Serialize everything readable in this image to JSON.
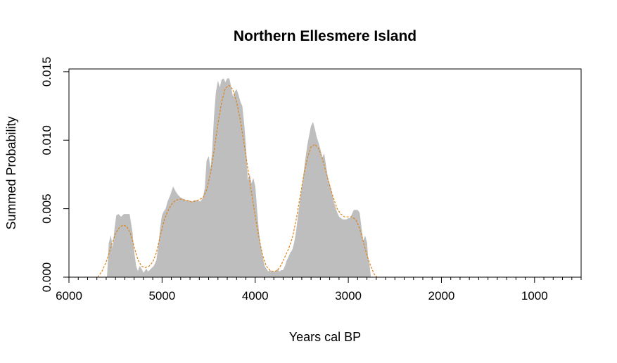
{
  "chart_data": {
    "type": "area",
    "title": "Northern Ellesmere Island",
    "xlabel": "Years cal BP",
    "ylabel": "Summed Probability",
    "xlim": [
      6000,
      500
    ],
    "ylim": [
      0,
      0.0152
    ],
    "x_reversed": true,
    "x_ticks": [
      6000,
      5000,
      4000,
      3000,
      2000,
      1000
    ],
    "x_tick_labels": [
      "6000",
      "5000",
      "4000",
      "3000",
      "2000",
      "1000"
    ],
    "x_minor_step": 100,
    "y_ticks": [
      0,
      0.005,
      0.01,
      0.015
    ],
    "y_tick_labels": [
      "0.000",
      "0.005",
      "0.010",
      "0.015"
    ],
    "grid": false,
    "series": [
      {
        "kind": "area",
        "color": "#bebebe",
        "points": [
          [
            5590,
            0
          ],
          [
            5570,
            0.0025
          ],
          [
            5550,
            0.003
          ],
          [
            5530,
            0.002
          ],
          [
            5510,
            0.0035
          ],
          [
            5490,
            0.0045
          ],
          [
            5470,
            0.0046
          ],
          [
            5440,
            0.0044
          ],
          [
            5410,
            0.0046
          ],
          [
            5380,
            0.0046
          ],
          [
            5350,
            0.0046
          ],
          [
            5320,
            0.0033
          ],
          [
            5300,
            0.0018
          ],
          [
            5280,
            0.0008
          ],
          [
            5260,
            0.0004
          ],
          [
            5240,
            0.0008
          ],
          [
            5220,
            0.0006
          ],
          [
            5200,
            0.0003
          ],
          [
            5170,
            0.0006
          ],
          [
            5150,
            0.0004
          ],
          [
            5120,
            0.0006
          ],
          [
            5090,
            0.0008
          ],
          [
            5060,
            0.0012
          ],
          [
            5040,
            0.0022
          ],
          [
            5020,
            0.0035
          ],
          [
            5000,
            0.0045
          ],
          [
            4980,
            0.0048
          ],
          [
            4960,
            0.005
          ],
          [
            4940,
            0.0055
          ],
          [
            4910,
            0.006
          ],
          [
            4880,
            0.0066
          ],
          [
            4860,
            0.0063
          ],
          [
            4830,
            0.006
          ],
          [
            4800,
            0.0058
          ],
          [
            4770,
            0.0057
          ],
          [
            4740,
            0.0056
          ],
          [
            4710,
            0.0056
          ],
          [
            4680,
            0.0055
          ],
          [
            4650,
            0.0056
          ],
          [
            4620,
            0.0056
          ],
          [
            4590,
            0.0055
          ],
          [
            4560,
            0.0058
          ],
          [
            4540,
            0.0065
          ],
          [
            4520,
            0.0085
          ],
          [
            4500,
            0.0088
          ],
          [
            4480,
            0.0078
          ],
          [
            4460,
            0.0092
          ],
          [
            4440,
            0.0118
          ],
          [
            4420,
            0.0135
          ],
          [
            4400,
            0.0143
          ],
          [
            4380,
            0.0138
          ],
          [
            4360,
            0.0144
          ],
          [
            4340,
            0.0145
          ],
          [
            4320,
            0.0142
          ],
          [
            4300,
            0.0145
          ],
          [
            4280,
            0.0145
          ],
          [
            4260,
            0.0139
          ],
          [
            4240,
            0.0131
          ],
          [
            4220,
            0.0135
          ],
          [
            4200,
            0.0137
          ],
          [
            4180,
            0.0133
          ],
          [
            4160,
            0.0128
          ],
          [
            4140,
            0.0125
          ],
          [
            4120,
            0.0112
          ],
          [
            4100,
            0.0095
          ],
          [
            4080,
            0.007
          ],
          [
            4060,
            0.0075
          ],
          [
            4040,
            0.0068
          ],
          [
            4020,
            0.0072
          ],
          [
            4000,
            0.0066
          ],
          [
            3980,
            0.0048
          ],
          [
            3960,
            0.0032
          ],
          [
            3940,
            0.0022
          ],
          [
            3920,
            0.0015
          ],
          [
            3900,
            0.0008
          ],
          [
            3880,
            0.0006
          ],
          [
            3860,
            0.0004
          ],
          [
            3840,
            0.0005
          ],
          [
            3820,
            0.0004
          ],
          [
            3800,
            0.0004
          ],
          [
            3780,
            0.0004
          ],
          [
            3760,
            0.0006
          ],
          [
            3740,
            0.0004
          ],
          [
            3720,
            0.0005
          ],
          [
            3700,
            0.0005
          ],
          [
            3680,
            0.0008
          ],
          [
            3660,
            0.0012
          ],
          [
            3640,
            0.0015
          ],
          [
            3620,
            0.0018
          ],
          [
            3600,
            0.002
          ],
          [
            3580,
            0.0025
          ],
          [
            3560,
            0.0033
          ],
          [
            3540,
            0.0044
          ],
          [
            3520,
            0.0055
          ],
          [
            3500,
            0.0064
          ],
          [
            3480,
            0.0075
          ],
          [
            3460,
            0.0086
          ],
          [
            3440,
            0.0096
          ],
          [
            3420,
            0.0103
          ],
          [
            3400,
            0.011
          ],
          [
            3380,
            0.0113
          ],
          [
            3360,
            0.0108
          ],
          [
            3340,
            0.0102
          ],
          [
            3320,
            0.0098
          ],
          [
            3300,
            0.0093
          ],
          [
            3280,
            0.0087
          ],
          [
            3260,
            0.009
          ],
          [
            3240,
            0.0081
          ],
          [
            3220,
            0.0072
          ],
          [
            3200,
            0.0068
          ],
          [
            3180,
            0.0062
          ],
          [
            3160,
            0.0056
          ],
          [
            3140,
            0.0051
          ],
          [
            3120,
            0.0047
          ],
          [
            3100,
            0.0044
          ],
          [
            3080,
            0.0043
          ],
          [
            3060,
            0.0042
          ],
          [
            3040,
            0.0042
          ],
          [
            3020,
            0.0042
          ],
          [
            3000,
            0.0043
          ],
          [
            2980,
            0.0043
          ],
          [
            2960,
            0.0046
          ],
          [
            2940,
            0.0049
          ],
          [
            2920,
            0.0049
          ],
          [
            2900,
            0.0049
          ],
          [
            2880,
            0.0047
          ],
          [
            2860,
            0.0036
          ],
          [
            2840,
            0.0026
          ],
          [
            2820,
            0.003
          ],
          [
            2800,
            0.0025
          ],
          [
            2790,
            0.0015
          ],
          [
            2770,
            0.0007
          ],
          [
            2760,
            0
          ]
        ]
      },
      {
        "kind": "line",
        "style": "dashed",
        "color": "#e08214",
        "points": [
          [
            5690,
            0
          ],
          [
            5640,
            0.0005
          ],
          [
            5590,
            0.0013
          ],
          [
            5540,
            0.0024
          ],
          [
            5500,
            0.0032
          ],
          [
            5460,
            0.0036
          ],
          [
            5420,
            0.0038
          ],
          [
            5380,
            0.0037
          ],
          [
            5340,
            0.0032
          ],
          [
            5300,
            0.0022
          ],
          [
            5260,
            0.0013
          ],
          [
            5220,
            0.0008
          ],
          [
            5180,
            0.0007
          ],
          [
            5140,
            0.0008
          ],
          [
            5100,
            0.0011
          ],
          [
            5060,
            0.0018
          ],
          [
            5020,
            0.003
          ],
          [
            4980,
            0.0041
          ],
          [
            4940,
            0.0048
          ],
          [
            4900,
            0.0053
          ],
          [
            4860,
            0.0056
          ],
          [
            4800,
            0.0057
          ],
          [
            4740,
            0.0056
          ],
          [
            4680,
            0.0055
          ],
          [
            4620,
            0.0056
          ],
          [
            4560,
            0.0058
          ],
          [
            4520,
            0.0064
          ],
          [
            4480,
            0.0076
          ],
          [
            4440,
            0.0093
          ],
          [
            4400,
            0.0112
          ],
          [
            4360,
            0.0128
          ],
          [
            4320,
            0.0138
          ],
          [
            4280,
            0.014
          ],
          [
            4240,
            0.0137
          ],
          [
            4200,
            0.0128
          ],
          [
            4160,
            0.0115
          ],
          [
            4120,
            0.0098
          ],
          [
            4080,
            0.008
          ],
          [
            4040,
            0.0062
          ],
          [
            4000,
            0.0045
          ],
          [
            3960,
            0.0029
          ],
          [
            3920,
            0.0016
          ],
          [
            3880,
            0.0008
          ],
          [
            3840,
            0.0005
          ],
          [
            3800,
            0.0004
          ],
          [
            3760,
            0.0005
          ],
          [
            3720,
            0.0009
          ],
          [
            3680,
            0.0015
          ],
          [
            3640,
            0.0021
          ],
          [
            3600,
            0.0029
          ],
          [
            3560,
            0.0042
          ],
          [
            3520,
            0.0058
          ],
          [
            3480,
            0.0074
          ],
          [
            3440,
            0.0087
          ],
          [
            3400,
            0.0095
          ],
          [
            3360,
            0.0097
          ],
          [
            3320,
            0.0094
          ],
          [
            3280,
            0.0087
          ],
          [
            3240,
            0.0077
          ],
          [
            3200,
            0.0067
          ],
          [
            3160,
            0.0058
          ],
          [
            3120,
            0.005
          ],
          [
            3080,
            0.0046
          ],
          [
            3040,
            0.0044
          ],
          [
            3000,
            0.0044
          ],
          [
            2960,
            0.0044
          ],
          [
            2920,
            0.0042
          ],
          [
            2880,
            0.0036
          ],
          [
            2840,
            0.0026
          ],
          [
            2800,
            0.0016
          ],
          [
            2760,
            0.0008
          ],
          [
            2720,
            0.0002
          ],
          [
            2690,
            0
          ]
        ]
      }
    ]
  }
}
